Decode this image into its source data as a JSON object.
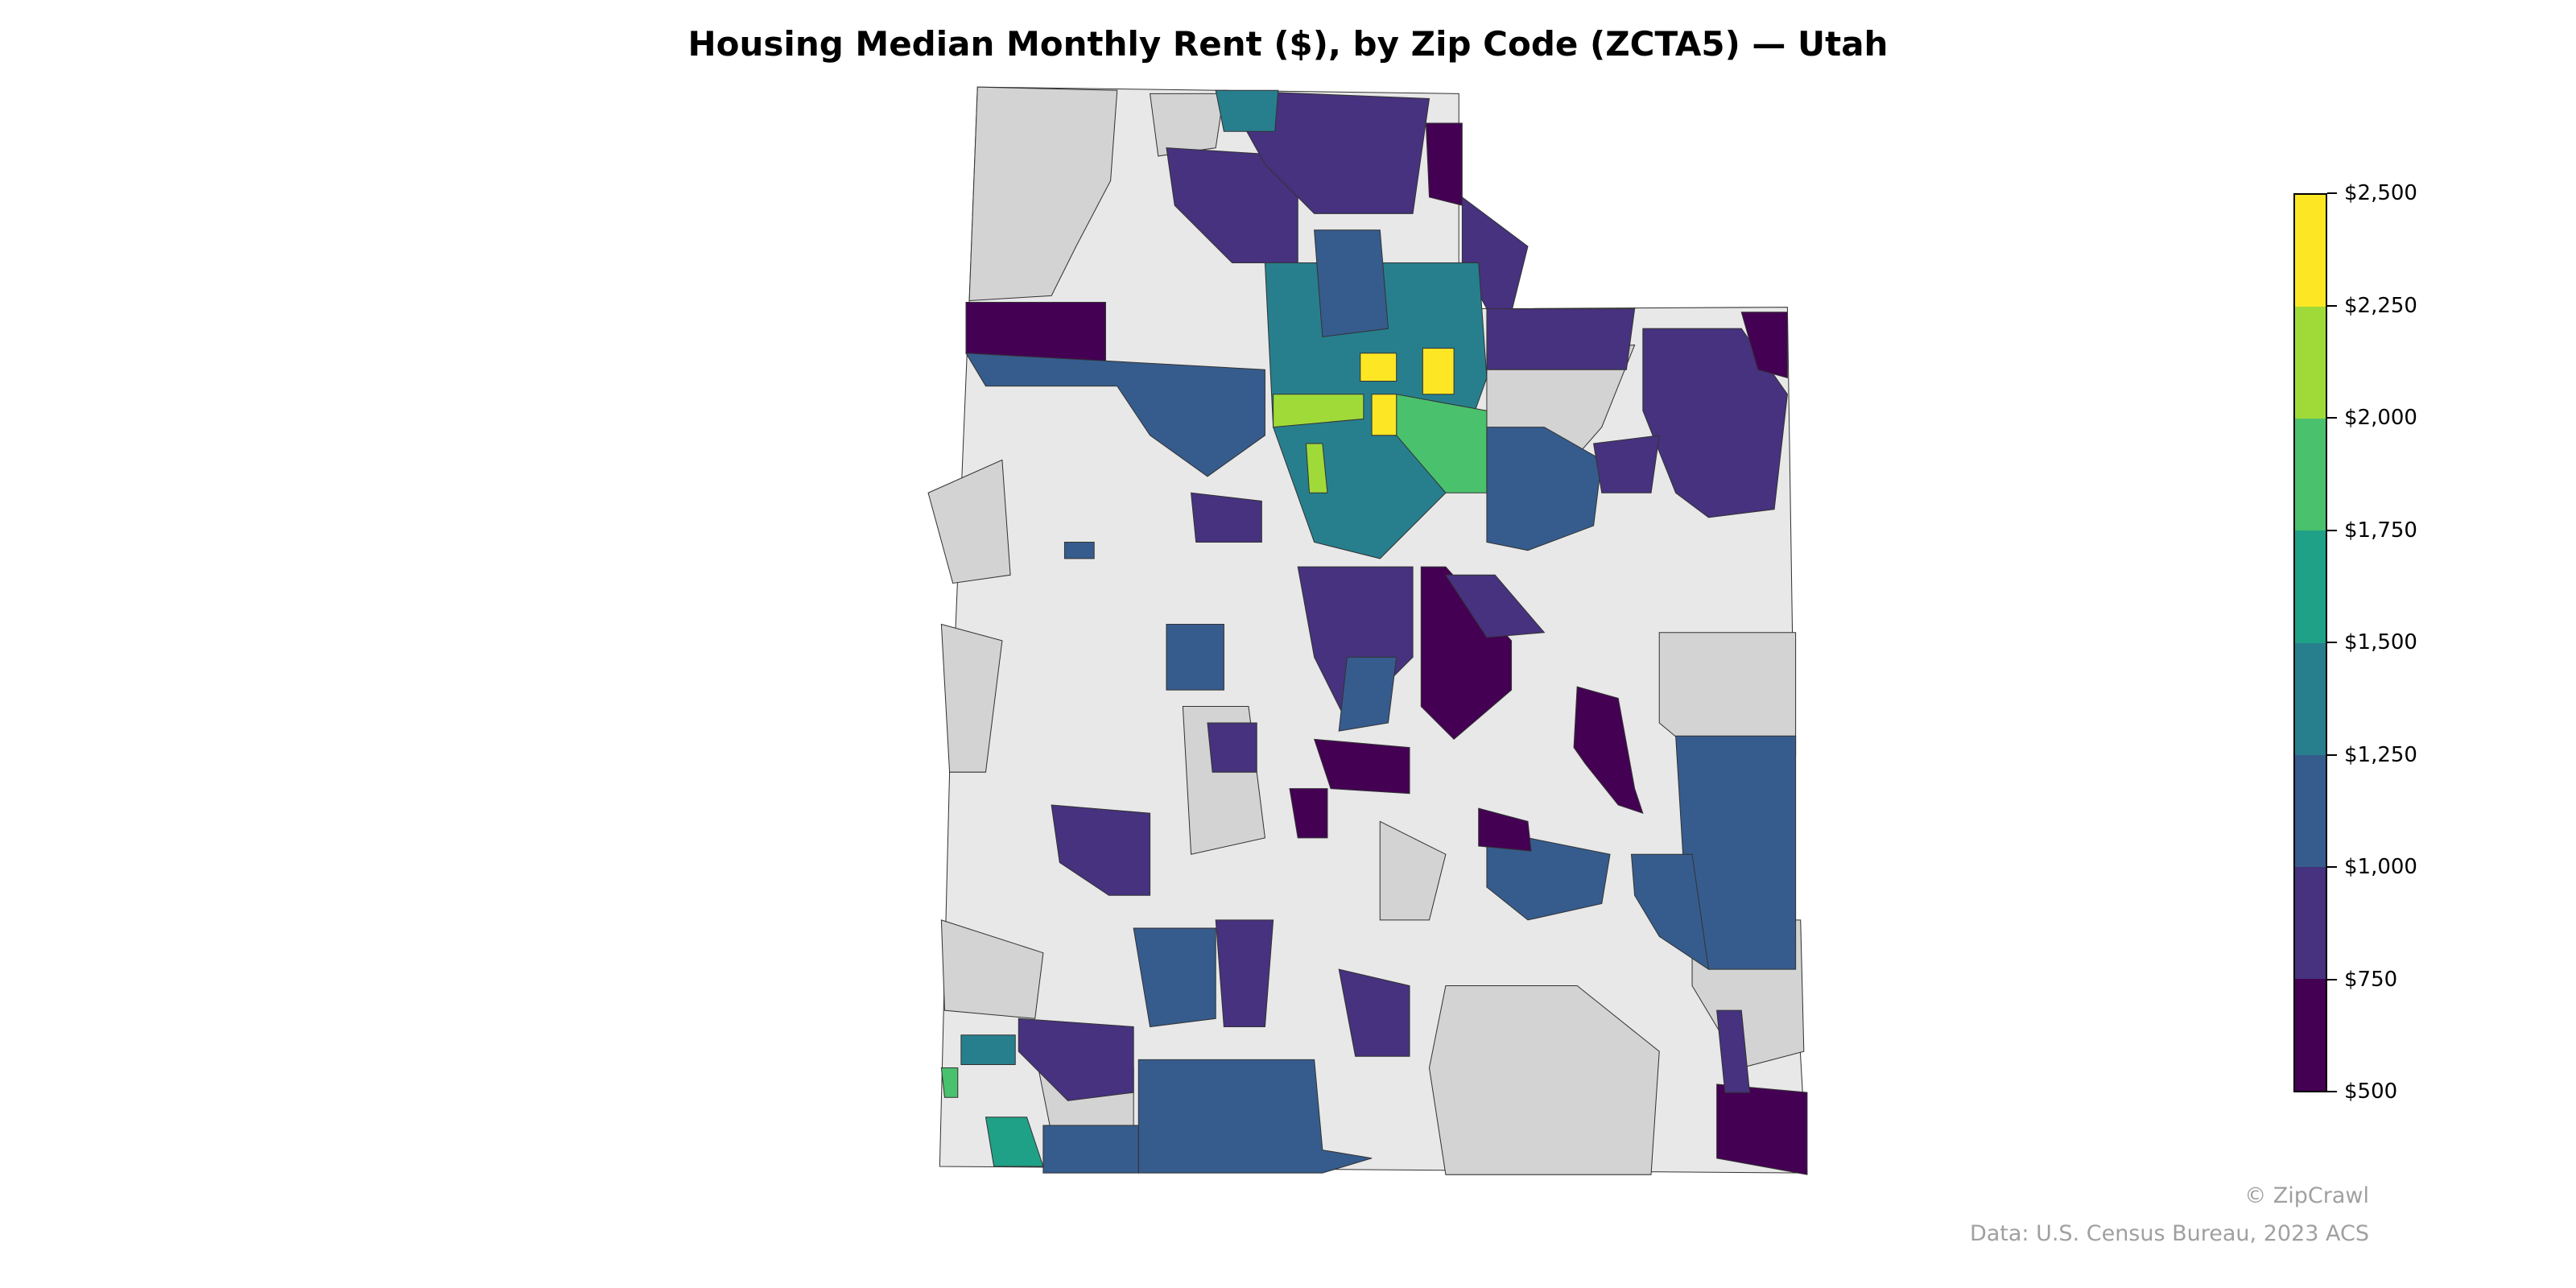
{
  "title": "Housing Median Monthly Rent ($), by Zip Code (ZCTA5) — Utah",
  "colorbar": {
    "min": 500,
    "max": 2500,
    "ticks": [
      "$500",
      "$750",
      "$1,000",
      "$1,250",
      "$1,500",
      "$1,750",
      "$2,000",
      "$2,250",
      "$2,500"
    ],
    "bins": [
      {
        "from": 500,
        "to": 750,
        "color": "#440154"
      },
      {
        "from": 750,
        "to": 1000,
        "color": "#46327e"
      },
      {
        "from": 1000,
        "to": 1250,
        "color": "#365c8d"
      },
      {
        "from": 1250,
        "to": 1500,
        "color": "#277f8e"
      },
      {
        "from": 1500,
        "to": 1750,
        "color": "#1fa187"
      },
      {
        "from": 1750,
        "to": 2000,
        "color": "#4ac16d"
      },
      {
        "from": 2000,
        "to": 2250,
        "color": "#a0da39"
      },
      {
        "from": 2250,
        "to": 2500,
        "color": "#fde725"
      }
    ]
  },
  "colors": {
    "state_fill": "#e8e8e8",
    "no_data": "#d3d3d3",
    "border": "#333333"
  },
  "footer": {
    "copyright": "© ZipCrawl",
    "source": "Data: U.S. Census Bureau, 2023 ACS"
  }
}
